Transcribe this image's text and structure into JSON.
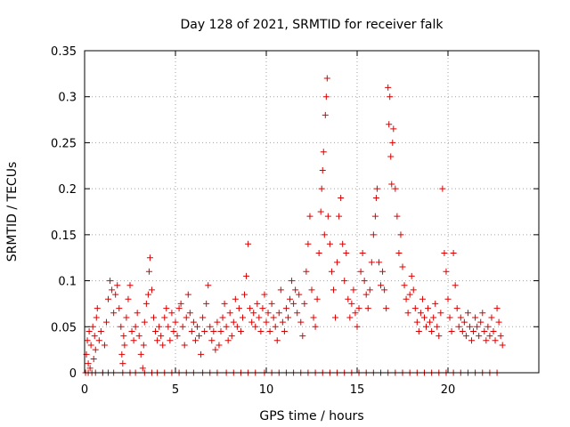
{
  "chart_data": {
    "type": "scatter",
    "title": "Day 128 of 2021, SRMTID for receiver falk",
    "xlabel": "GPS time / hours",
    "ylabel": "SRMTID / TECUs",
    "xlim": [
      0,
      25
    ],
    "ylim": [
      0,
      0.35
    ],
    "xticks": [
      0,
      5,
      10,
      15,
      20
    ],
    "yticks": [
      0,
      0.05,
      0.1,
      0.15,
      0.2,
      0.25,
      0.3,
      0.35
    ],
    "xtick_labels": [
      "0",
      "5",
      "10",
      "15",
      "20"
    ],
    "ytick_labels": [
      "0",
      "0.05",
      "0.1",
      "0.15",
      "0.2",
      "0.25",
      "0.3",
      "0.35"
    ],
    "grid": true,
    "marker": "+",
    "color": "#dd0000",
    "series": [
      {
        "name": "SRMTID",
        "points": [
          [
            0.05,
            0.0
          ],
          [
            0.1,
            0.02
          ],
          [
            0.15,
            0.035
          ],
          [
            0.2,
            0.01
          ],
          [
            0.25,
            0.045
          ],
          [
            0.3,
            0.005
          ],
          [
            0.35,
            0.03
          ],
          [
            0.4,
            0.0
          ],
          [
            0.45,
            0.05
          ],
          [
            0.5,
            0.015
          ],
          [
            0.55,
            0.04
          ],
          [
            0.6,
            0.025
          ],
          [
            0.65,
            0.06
          ],
          [
            0.7,
            0.07
          ],
          [
            0.8,
            0.035
          ],
          [
            0.9,
            0.045
          ],
          [
            1.0,
            0.0
          ],
          [
            1.1,
            0.03
          ],
          [
            1.2,
            0.055
          ],
          [
            1.3,
            0.08
          ],
          [
            1.4,
            0.1
          ],
          [
            1.5,
            0.09
          ],
          [
            1.6,
            0.065
          ],
          [
            1.7,
            0.085
          ],
          [
            1.8,
            0.095
          ],
          [
            1.9,
            0.07
          ],
          [
            2.0,
            0.05
          ],
          [
            2.05,
            0.02
          ],
          [
            2.1,
            0.01
          ],
          [
            2.15,
            0.04
          ],
          [
            2.2,
            0.03
          ],
          [
            2.3,
            0.06
          ],
          [
            2.4,
            0.08
          ],
          [
            2.5,
            0.095
          ],
          [
            2.6,
            0.045
          ],
          [
            2.7,
            0.035
          ],
          [
            2.8,
            0.05
          ],
          [
            2.9,
            0.065
          ],
          [
            3.0,
            0.04
          ],
          [
            3.1,
            0.02
          ],
          [
            3.2,
            0.005
          ],
          [
            3.25,
            0.03
          ],
          [
            3.3,
            0.055
          ],
          [
            3.4,
            0.075
          ],
          [
            3.5,
            0.085
          ],
          [
            3.55,
            0.11
          ],
          [
            3.6,
            0.125
          ],
          [
            3.7,
            0.09
          ],
          [
            3.8,
            0.06
          ],
          [
            3.9,
            0.045
          ],
          [
            4.0,
            0.035
          ],
          [
            4.1,
            0.05
          ],
          [
            4.2,
            0.04
          ],
          [
            4.3,
            0.03
          ],
          [
            4.4,
            0.06
          ],
          [
            4.5,
            0.07
          ],
          [
            4.6,
            0.05
          ],
          [
            4.7,
            0.035
          ],
          [
            4.8,
            0.065
          ],
          [
            4.9,
            0.045
          ],
          [
            5.0,
            0.055
          ],
          [
            5.1,
            0.04
          ],
          [
            5.2,
            0.07
          ],
          [
            5.3,
            0.075
          ],
          [
            5.4,
            0.05
          ],
          [
            5.5,
            0.03
          ],
          [
            5.6,
            0.06
          ],
          [
            5.7,
            0.085
          ],
          [
            5.8,
            0.065
          ],
          [
            5.9,
            0.045
          ],
          [
            6.0,
            0.055
          ],
          [
            6.1,
            0.035
          ],
          [
            6.2,
            0.05
          ],
          [
            6.3,
            0.04
          ],
          [
            6.4,
            0.02
          ],
          [
            6.5,
            0.06
          ],
          [
            6.6,
            0.045
          ],
          [
            6.7,
            0.075
          ],
          [
            6.8,
            0.095
          ],
          [
            6.9,
            0.05
          ],
          [
            7.0,
            0.035
          ],
          [
            7.1,
            0.045
          ],
          [
            7.2,
            0.025
          ],
          [
            7.3,
            0.055
          ],
          [
            7.4,
            0.03
          ],
          [
            7.5,
            0.045
          ],
          [
            7.6,
            0.06
          ],
          [
            7.7,
            0.075
          ],
          [
            7.8,
            0.05
          ],
          [
            7.9,
            0.035
          ],
          [
            8.0,
            0.065
          ],
          [
            8.1,
            0.04
          ],
          [
            8.2,
            0.055
          ],
          [
            8.3,
            0.08
          ],
          [
            8.4,
            0.05
          ],
          [
            8.5,
            0.07
          ],
          [
            8.6,
            0.045
          ],
          [
            8.7,
            0.06
          ],
          [
            8.8,
            0.085
          ],
          [
            8.9,
            0.105
          ],
          [
            9.0,
            0.14
          ],
          [
            9.1,
            0.07
          ],
          [
            9.2,
            0.055
          ],
          [
            9.3,
            0.065
          ],
          [
            9.4,
            0.05
          ],
          [
            9.5,
            0.075
          ],
          [
            9.6,
            0.06
          ],
          [
            9.7,
            0.045
          ],
          [
            9.8,
            0.07
          ],
          [
            9.9,
            0.085
          ],
          [
            10.0,
            0.055
          ],
          [
            10.1,
            0.065
          ],
          [
            10.2,
            0.045
          ],
          [
            10.3,
            0.075
          ],
          [
            10.4,
            0.06
          ],
          [
            10.5,
            0.05
          ],
          [
            10.6,
            0.035
          ],
          [
            10.7,
            0.065
          ],
          [
            10.8,
            0.09
          ],
          [
            10.9,
            0.055
          ],
          [
            11.0,
            0.045
          ],
          [
            11.1,
            0.07
          ],
          [
            11.2,
            0.06
          ],
          [
            11.3,
            0.08
          ],
          [
            11.4,
            0.1
          ],
          [
            11.5,
            0.075
          ],
          [
            11.6,
            0.09
          ],
          [
            11.7,
            0.065
          ],
          [
            11.8,
            0.085
          ],
          [
            11.9,
            0.055
          ],
          [
            12.0,
            0.04
          ],
          [
            12.1,
            0.075
          ],
          [
            12.2,
            0.11
          ],
          [
            12.3,
            0.14
          ],
          [
            12.4,
            0.17
          ],
          [
            12.5,
            0.09
          ],
          [
            12.6,
            0.06
          ],
          [
            12.7,
            0.05
          ],
          [
            12.8,
            0.08
          ],
          [
            12.9,
            0.13
          ],
          [
            13.0,
            0.175
          ],
          [
            13.05,
            0.2
          ],
          [
            13.1,
            0.22
          ],
          [
            13.15,
            0.24
          ],
          [
            13.2,
            0.15
          ],
          [
            13.25,
            0.28
          ],
          [
            13.3,
            0.3
          ],
          [
            13.35,
            0.32
          ],
          [
            13.4,
            0.17
          ],
          [
            13.5,
            0.14
          ],
          [
            13.6,
            0.11
          ],
          [
            13.7,
            0.09
          ],
          [
            13.8,
            0.06
          ],
          [
            13.9,
            0.12
          ],
          [
            14.0,
            0.17
          ],
          [
            14.1,
            0.19
          ],
          [
            14.2,
            0.14
          ],
          [
            14.3,
            0.1
          ],
          [
            14.4,
            0.13
          ],
          [
            14.5,
            0.08
          ],
          [
            14.6,
            0.06
          ],
          [
            14.7,
            0.075
          ],
          [
            14.8,
            0.09
          ],
          [
            14.9,
            0.065
          ],
          [
            15.0,
            0.05
          ],
          [
            15.1,
            0.07
          ],
          [
            15.2,
            0.11
          ],
          [
            15.3,
            0.13
          ],
          [
            15.4,
            0.1
          ],
          [
            15.5,
            0.085
          ],
          [
            15.6,
            0.07
          ],
          [
            15.7,
            0.09
          ],
          [
            15.8,
            0.12
          ],
          [
            15.9,
            0.15
          ],
          [
            16.0,
            0.17
          ],
          [
            16.05,
            0.19
          ],
          [
            16.1,
            0.2
          ],
          [
            16.2,
            0.12
          ],
          [
            16.3,
            0.095
          ],
          [
            16.4,
            0.11
          ],
          [
            16.5,
            0.09
          ],
          [
            16.6,
            0.07
          ],
          [
            16.7,
            0.31
          ],
          [
            16.75,
            0.27
          ],
          [
            16.8,
            0.3
          ],
          [
            16.85,
            0.235
          ],
          [
            16.9,
            0.205
          ],
          [
            16.95,
            0.25
          ],
          [
            17.0,
            0.265
          ],
          [
            17.1,
            0.2
          ],
          [
            17.2,
            0.17
          ],
          [
            17.3,
            0.13
          ],
          [
            17.4,
            0.15
          ],
          [
            17.5,
            0.115
          ],
          [
            17.6,
            0.095
          ],
          [
            17.7,
            0.08
          ],
          [
            17.8,
            0.065
          ],
          [
            17.9,
            0.085
          ],
          [
            18.0,
            0.105
          ],
          [
            18.1,
            0.09
          ],
          [
            18.2,
            0.07
          ],
          [
            18.3,
            0.055
          ],
          [
            18.4,
            0.045
          ],
          [
            18.5,
            0.065
          ],
          [
            18.6,
            0.08
          ],
          [
            18.7,
            0.06
          ],
          [
            18.8,
            0.05
          ],
          [
            18.9,
            0.07
          ],
          [
            19.0,
            0.055
          ],
          [
            19.1,
            0.045
          ],
          [
            19.2,
            0.06
          ],
          [
            19.3,
            0.075
          ],
          [
            19.4,
            0.05
          ],
          [
            19.5,
            0.04
          ],
          [
            19.6,
            0.065
          ],
          [
            19.7,
            0.2
          ],
          [
            19.8,
            0.13
          ],
          [
            19.9,
            0.11
          ],
          [
            20.0,
            0.08
          ],
          [
            20.1,
            0.06
          ],
          [
            20.2,
            0.045
          ],
          [
            20.3,
            0.13
          ],
          [
            20.4,
            0.095
          ],
          [
            20.5,
            0.07
          ],
          [
            20.6,
            0.05
          ],
          [
            20.7,
            0.06
          ],
          [
            20.8,
            0.045
          ],
          [
            20.9,
            0.055
          ],
          [
            21.0,
            0.04
          ],
          [
            21.1,
            0.065
          ],
          [
            21.2,
            0.05
          ],
          [
            21.3,
            0.035
          ],
          [
            21.4,
            0.045
          ],
          [
            21.5,
            0.06
          ],
          [
            21.6,
            0.05
          ],
          [
            21.7,
            0.04
          ],
          [
            21.8,
            0.055
          ],
          [
            21.9,
            0.065
          ],
          [
            22.0,
            0.045
          ],
          [
            22.1,
            0.035
          ],
          [
            22.2,
            0.05
          ],
          [
            22.3,
            0.04
          ],
          [
            22.4,
            0.06
          ],
          [
            22.5,
            0.045
          ],
          [
            22.6,
            0.035
          ],
          [
            22.7,
            0.07
          ],
          [
            22.8,
            0.055
          ],
          [
            22.9,
            0.04
          ],
          [
            23.0,
            0.03
          ],
          [
            0.2,
            0.0
          ],
          [
            0.6,
            0.0
          ],
          [
            1.0,
            0.0
          ],
          [
            1.3,
            0.0
          ],
          [
            1.6,
            0.0
          ],
          [
            2.1,
            0.0
          ],
          [
            2.5,
            0.0
          ],
          [
            2.8,
            0.0
          ],
          [
            3.3,
            0.0
          ],
          [
            3.7,
            0.0
          ],
          [
            4.0,
            0.0
          ],
          [
            4.4,
            0.0
          ],
          [
            4.8,
            0.0
          ],
          [
            5.2,
            0.0
          ],
          [
            5.6,
            0.0
          ],
          [
            6.0,
            0.0
          ],
          [
            6.5,
            0.0
          ],
          [
            6.9,
            0.0
          ],
          [
            7.3,
            0.0
          ],
          [
            7.8,
            0.0
          ],
          [
            8.2,
            0.0
          ],
          [
            8.6,
            0.0
          ],
          [
            9.0,
            0.0
          ],
          [
            9.4,
            0.0
          ],
          [
            9.9,
            0.0
          ],
          [
            10.3,
            0.0
          ],
          [
            10.7,
            0.0
          ],
          [
            11.1,
            0.0
          ],
          [
            11.5,
            0.0
          ],
          [
            11.9,
            0.0
          ],
          [
            12.3,
            0.0
          ],
          [
            12.7,
            0.0
          ],
          [
            13.1,
            0.0
          ],
          [
            13.5,
            0.0
          ],
          [
            13.9,
            0.0
          ],
          [
            14.3,
            0.0
          ],
          [
            14.7,
            0.0
          ],
          [
            15.1,
            0.0
          ],
          [
            15.5,
            0.0
          ],
          [
            15.9,
            0.0
          ],
          [
            16.3,
            0.0
          ],
          [
            16.7,
            0.0
          ],
          [
            17.1,
            0.0
          ],
          [
            17.5,
            0.0
          ],
          [
            17.9,
            0.0
          ],
          [
            18.3,
            0.0
          ],
          [
            18.7,
            0.0
          ],
          [
            19.1,
            0.0
          ],
          [
            19.5,
            0.0
          ],
          [
            19.9,
            0.0
          ],
          [
            20.3,
            0.0
          ],
          [
            20.7,
            0.0
          ],
          [
            21.1,
            0.0
          ],
          [
            21.5,
            0.0
          ],
          [
            21.9,
            0.0
          ],
          [
            22.3,
            0.0
          ],
          [
            22.7,
            0.0
          ]
        ]
      }
    ]
  }
}
